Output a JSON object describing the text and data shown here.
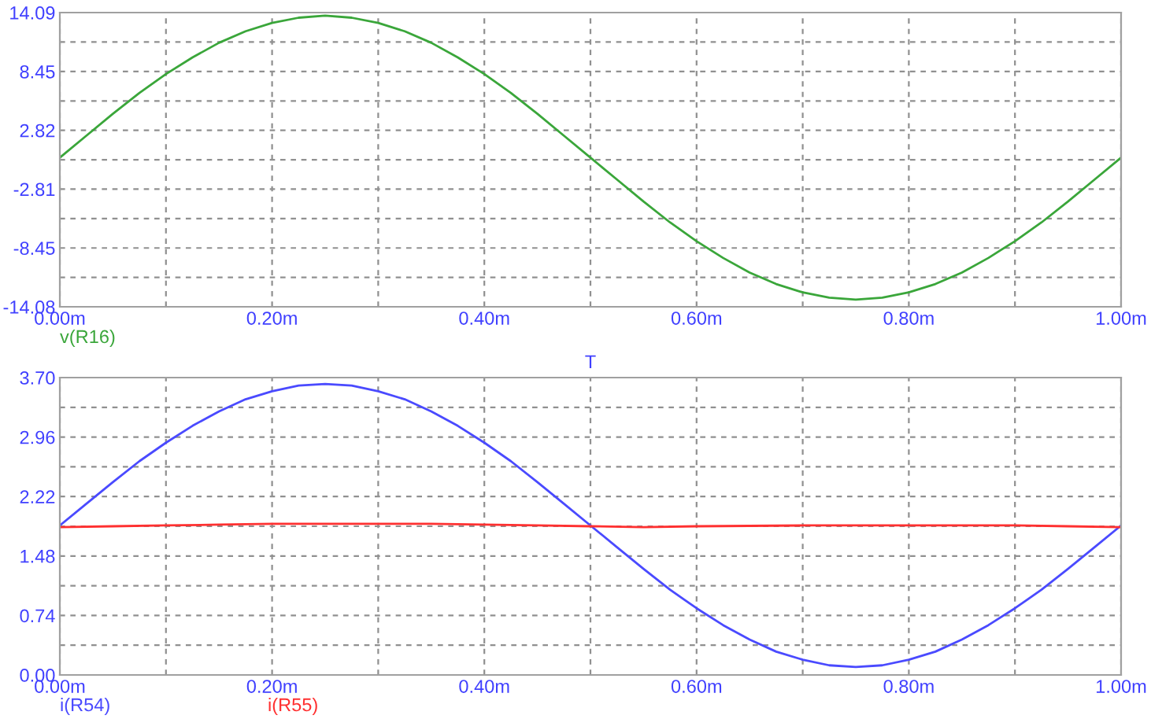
{
  "chart_data": [
    {
      "type": "line",
      "xlabel": "T",
      "grid": true,
      "line_style": "solid",
      "xlim": [
        0,
        1.0
      ],
      "ylim": [
        -14.08,
        14.09
      ],
      "xticks": [
        {
          "value": 0,
          "label": "0.00m"
        },
        {
          "value": 0.1,
          "label": null
        },
        {
          "value": 0.2,
          "label": "0.20m"
        },
        {
          "value": 0.3,
          "label": null
        },
        {
          "value": 0.4,
          "label": "0.40m"
        },
        {
          "value": 0.5,
          "label": null
        },
        {
          "value": 0.6,
          "label": "0.60m"
        },
        {
          "value": 0.7,
          "label": null
        },
        {
          "value": 0.8,
          "label": "0.80m"
        },
        {
          "value": 0.9,
          "label": null
        },
        {
          "value": 1.0,
          "label": "1.00m"
        }
      ],
      "yticks": [
        -14.08,
        {
          "value": -11.26,
          "label": null
        },
        -8.45,
        {
          "value": -5.63,
          "label": null
        },
        -2.81,
        {
          "value": 0,
          "label": null
        },
        2.82,
        {
          "value": 5.63,
          "label": null
        },
        8.45,
        {
          "value": 11.27,
          "label": null
        },
        14.09
      ],
      "x": [
        0,
        0.025,
        0.05,
        0.075,
        0.1,
        0.125,
        0.15,
        0.175,
        0.2,
        0.225,
        0.25,
        0.275,
        0.3,
        0.325,
        0.35,
        0.375,
        0.4,
        0.425,
        0.45,
        0.475,
        0.5,
        0.525,
        0.55,
        0.575,
        0.6,
        0.625,
        0.65,
        0.675,
        0.7,
        0.725,
        0.75,
        0.775,
        0.8,
        0.825,
        0.85,
        0.875,
        0.9,
        0.925,
        0.95,
        0.975,
        1.0
      ],
      "series": [
        {
          "name": "v(R16)",
          "color": "#3aa63a",
          "values": [
            0.2,
            2.3,
            4.4,
            6.4,
            8.2,
            9.8,
            11.2,
            12.3,
            13.1,
            13.6,
            13.8,
            13.6,
            13.1,
            12.3,
            11.2,
            9.8,
            8.2,
            6.4,
            4.4,
            2.3,
            0.2,
            -1.9,
            -4.0,
            -6.0,
            -7.8,
            -9.4,
            -10.8,
            -11.9,
            -12.7,
            -13.2,
            -13.4,
            -13.2,
            -12.7,
            -11.9,
            -10.8,
            -9.4,
            -7.8,
            -6.0,
            -4.0,
            -1.9,
            0.2
          ]
        }
      ]
    },
    {
      "type": "line",
      "grid": true,
      "line_style": "solid",
      "xlim": [
        0,
        1.0
      ],
      "ylim": [
        0,
        3.7
      ],
      "xticks": [
        {
          "value": 0,
          "label": "0.00m"
        },
        {
          "value": 0.1,
          "label": null
        },
        {
          "value": 0.2,
          "label": "0.20m"
        },
        {
          "value": 0.3,
          "label": null
        },
        {
          "value": 0.4,
          "label": "0.40m"
        },
        {
          "value": 0.5,
          "label": null
        },
        {
          "value": 0.6,
          "label": "0.60m"
        },
        {
          "value": 0.7,
          "label": null
        },
        {
          "value": 0.8,
          "label": "0.80m"
        },
        {
          "value": 0.9,
          "label": null
        },
        {
          "value": 1.0,
          "label": "1.00m"
        }
      ],
      "yticks": [
        {
          "value": 0,
          "label": "0.00"
        },
        {
          "value": 0.37,
          "label": null
        },
        0.74,
        {
          "value": 1.11,
          "label": null
        },
        1.48,
        {
          "value": 1.85,
          "label": null
        },
        2.22,
        {
          "value": 2.59,
          "label": null
        },
        2.96,
        {
          "value": 3.33,
          "label": null
        },
        {
          "value": 3.7,
          "label": "3.70"
        }
      ],
      "x": [
        0,
        0.025,
        0.05,
        0.075,
        0.1,
        0.125,
        0.15,
        0.175,
        0.2,
        0.225,
        0.25,
        0.275,
        0.3,
        0.325,
        0.35,
        0.375,
        0.4,
        0.425,
        0.45,
        0.475,
        0.5,
        0.525,
        0.55,
        0.575,
        0.6,
        0.625,
        0.65,
        0.675,
        0.7,
        0.725,
        0.75,
        0.775,
        0.8,
        0.825,
        0.85,
        0.875,
        0.9,
        0.925,
        0.95,
        0.975,
        1.0
      ],
      "series": [
        {
          "name": "i(R54)",
          "color": "#4a4aff",
          "values": [
            1.86,
            2.13,
            2.4,
            2.66,
            2.89,
            3.1,
            3.28,
            3.43,
            3.53,
            3.6,
            3.62,
            3.6,
            3.53,
            3.43,
            3.28,
            3.1,
            2.89,
            2.66,
            2.4,
            2.13,
            1.86,
            1.59,
            1.32,
            1.06,
            0.83,
            0.62,
            0.44,
            0.29,
            0.19,
            0.12,
            0.1,
            0.12,
            0.19,
            0.29,
            0.44,
            0.62,
            0.83,
            1.06,
            1.32,
            1.59,
            1.86
          ]
        },
        {
          "name": "i(R55)",
          "color": "#ff3030",
          "x": [
            0,
            0.05,
            0.1,
            0.15,
            0.2,
            0.25,
            0.3,
            0.35,
            0.4,
            0.45,
            0.5,
            0.55,
            0.6,
            0.7,
            0.8,
            0.9,
            0.95,
            1.0
          ],
          "values": [
            1.84,
            1.85,
            1.86,
            1.87,
            1.88,
            1.88,
            1.88,
            1.88,
            1.87,
            1.86,
            1.85,
            1.84,
            1.85,
            1.86,
            1.86,
            1.86,
            1.85,
            1.84
          ]
        }
      ]
    }
  ]
}
